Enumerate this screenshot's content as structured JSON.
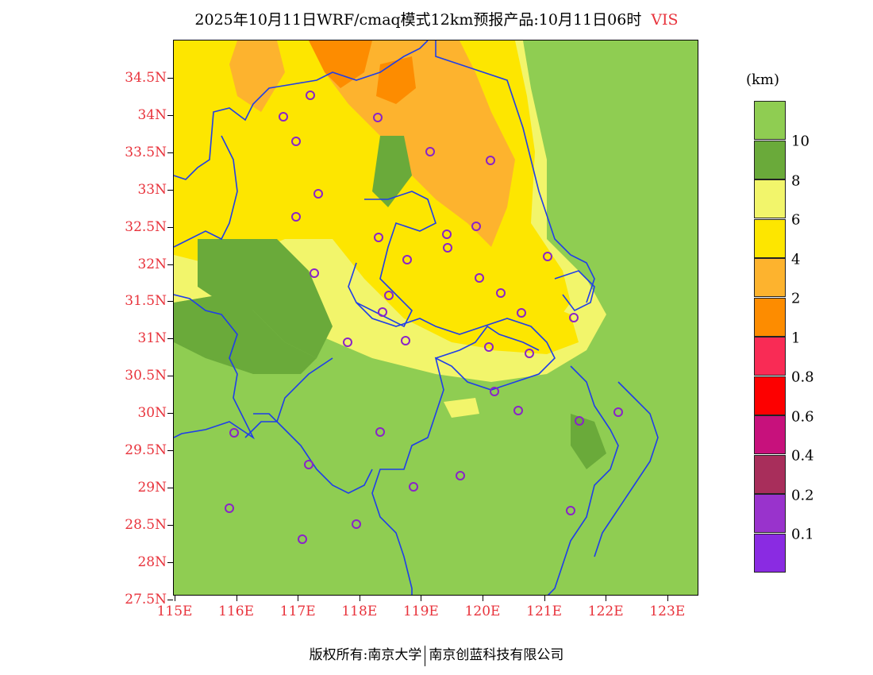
{
  "title": {
    "text": "2025年10月11日WRF/cmaq模式12km预报产品:10月11日06时",
    "variable": "VIS"
  },
  "axes": {
    "lat_labels": [
      "34.5N",
      "34N",
      "33.5N",
      "33N",
      "32.5N",
      "32N",
      "31.5N",
      "31N",
      "30.5N",
      "30N",
      "29.5N",
      "29N",
      "28.5N",
      "28N",
      "27.5N"
    ],
    "lon_labels": [
      "115E",
      "116E",
      "117E",
      "118E",
      "119E",
      "120E",
      "121E",
      "122E",
      "123E"
    ]
  },
  "legend": {
    "unit": "(km)",
    "labels": [
      "10",
      "8",
      "6",
      "4",
      "2",
      "1",
      "0.8",
      "0.6",
      "0.4",
      "0.2",
      "0.1"
    ],
    "colors": [
      "#8fcd52",
      "#6aaa3a",
      "#f2f56b",
      "#fde600",
      "#fdb32e",
      "#fd8c00",
      "#f92b55",
      "#fd0000",
      "#c7117c",
      "#a82e5b",
      "#9933cc",
      "#8a2be2"
    ]
  },
  "map_colors": {
    "vis_10": "#8fcd52",
    "vis_8": "#6aaa3a",
    "vis_6": "#f2f56b",
    "vis_4": "#fde600",
    "vis_2": "#fdb32e",
    "vis_1": "#fd8c00",
    "boundary": "#1f3ee8",
    "station": "#8a23c8"
  },
  "footer": {
    "left": "版权所有:南京大学",
    "right": "南京创蓝科技有限公司"
  }
}
